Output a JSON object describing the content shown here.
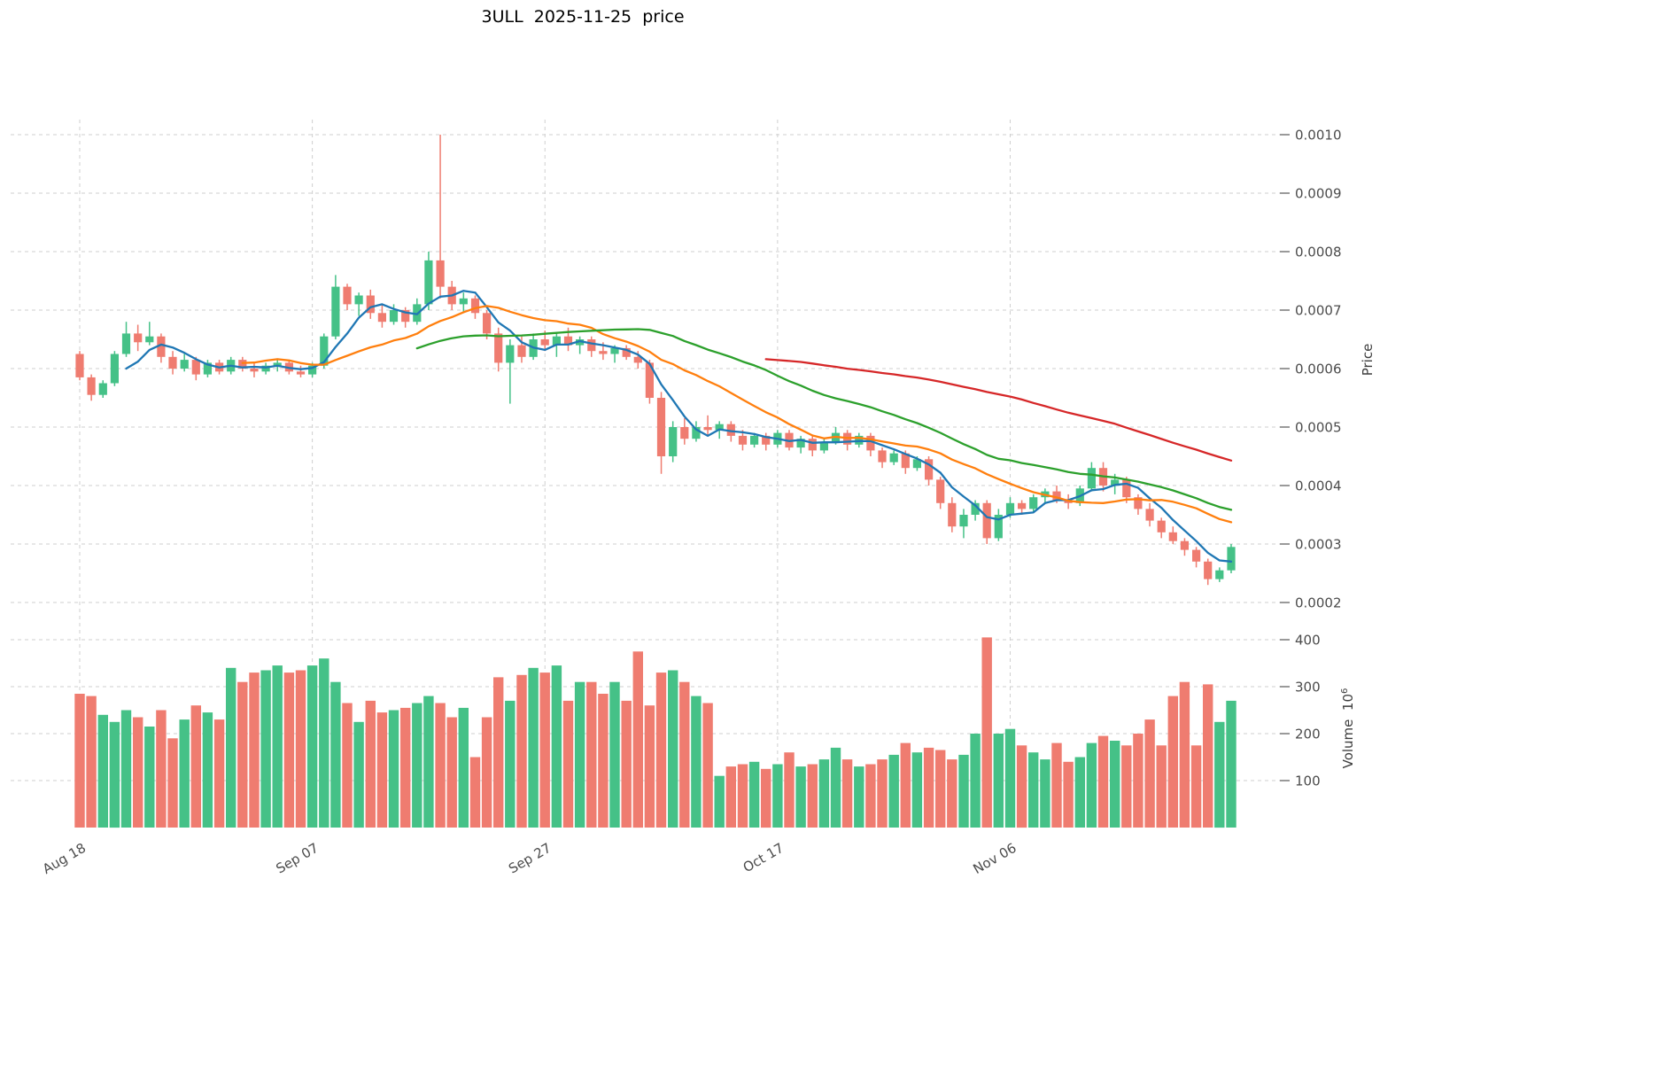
{
  "chart_data": {
    "type": "candlestick",
    "title": "3ULL  2025-11-25  price",
    "background": "#ffffff",
    "grid_color": "#cfcfcf",
    "colors": {
      "up": "#45c187",
      "down": "#ef7c70"
    },
    "price_panel": {
      "ylabel": "Price",
      "yticks": [
        0.0002,
        0.0003,
        0.0004,
        0.0005,
        0.0006,
        0.0007,
        0.0008,
        0.0009,
        0.001
      ],
      "ylim": [
        0.00018,
        0.00103
      ],
      "grid": true
    },
    "volume_panel": {
      "ylabel": "Volume",
      "unit_base": "10",
      "unit_exponent": "6",
      "yticks": [
        100,
        200,
        300,
        400
      ],
      "ylim": [
        0,
        420
      ],
      "grid": true
    },
    "x_axis": {
      "tick_labels": [
        "Aug 18",
        "Sep 07",
        "Sep 27",
        "Oct 17",
        "Nov 06"
      ],
      "tick_indices": [
        0,
        20,
        40,
        60,
        80
      ],
      "n_points": 100
    },
    "moving_averages": [
      {
        "name": "MA5",
        "window": 5,
        "color": "#1f77b4"
      },
      {
        "name": "MA15",
        "window": 15,
        "color": "#ff7f0e"
      },
      {
        "name": "MA30",
        "window": 30,
        "color": "#2ca02c"
      },
      {
        "name": "MA60",
        "window": 60,
        "color": "#d62728"
      }
    ],
    "volume_unit": "millions",
    "ohlcv": [
      [
        0.000625,
        0.00063,
        0.00058,
        0.000585,
        285
      ],
      [
        0.000585,
        0.00059,
        0.000545,
        0.000555,
        280
      ],
      [
        0.000555,
        0.00058,
        0.00055,
        0.000575,
        240
      ],
      [
        0.000575,
        0.00063,
        0.00057,
        0.000625,
        225
      ],
      [
        0.000625,
        0.00068,
        0.00062,
        0.00066,
        250
      ],
      [
        0.00066,
        0.000675,
        0.00063,
        0.000645,
        235
      ],
      [
        0.000645,
        0.00068,
        0.00064,
        0.000655,
        215
      ],
      [
        0.000655,
        0.00066,
        0.00061,
        0.00062,
        250
      ],
      [
        0.00062,
        0.00063,
        0.00059,
        0.0006,
        190
      ],
      [
        0.0006,
        0.000625,
        0.000595,
        0.000615,
        230
      ],
      [
        0.000615,
        0.00062,
        0.00058,
        0.00059,
        260
      ],
      [
        0.00059,
        0.000615,
        0.000585,
        0.00061,
        245
      ],
      [
        0.00061,
        0.000615,
        0.00059,
        0.000595,
        230
      ],
      [
        0.000595,
        0.00062,
        0.00059,
        0.000615,
        340
      ],
      [
        0.000615,
        0.00062,
        0.000595,
        0.0006,
        310
      ],
      [
        0.0006,
        0.00061,
        0.000585,
        0.000595,
        330
      ],
      [
        0.000595,
        0.00061,
        0.00059,
        0.000605,
        335
      ],
      [
        0.000605,
        0.000615,
        0.000595,
        0.00061,
        345
      ],
      [
        0.00061,
        0.000615,
        0.00059,
        0.000595,
        330
      ],
      [
        0.000595,
        0.000605,
        0.000585,
        0.00059,
        335
      ],
      [
        0.00059,
        0.00061,
        0.000585,
        0.000605,
        345
      ],
      [
        0.000605,
        0.00066,
        0.0006,
        0.000655,
        360
      ],
      [
        0.000655,
        0.00076,
        0.00065,
        0.00074,
        310
      ],
      [
        0.00074,
        0.000745,
        0.0007,
        0.00071,
        265
      ],
      [
        0.00071,
        0.00073,
        0.00069,
        0.000725,
        225
      ],
      [
        0.000725,
        0.000735,
        0.000685,
        0.000695,
        270
      ],
      [
        0.000695,
        0.00071,
        0.00067,
        0.00068,
        245
      ],
      [
        0.00068,
        0.00071,
        0.000675,
        0.0007,
        250
      ],
      [
        0.0007,
        0.000705,
        0.00067,
        0.00068,
        255
      ],
      [
        0.00068,
        0.00072,
        0.000675,
        0.00071,
        265
      ],
      [
        0.00071,
        0.0008,
        0.0007,
        0.000785,
        280
      ],
      [
        0.000785,
        0.001,
        0.00072,
        0.00074,
        265
      ],
      [
        0.00074,
        0.00075,
        0.0007,
        0.00071,
        235
      ],
      [
        0.00071,
        0.00073,
        0.000695,
        0.00072,
        255
      ],
      [
        0.00072,
        0.000725,
        0.000685,
        0.000695,
        150
      ],
      [
        0.000695,
        0.0007,
        0.00065,
        0.00066,
        235
      ],
      [
        0.00066,
        0.00067,
        0.000595,
        0.00061,
        320
      ],
      [
        0.00061,
        0.00065,
        0.00054,
        0.00064,
        270
      ],
      [
        0.00064,
        0.000655,
        0.00061,
        0.00062,
        325
      ],
      [
        0.00062,
        0.00066,
        0.000615,
        0.00065,
        340
      ],
      [
        0.00065,
        0.000665,
        0.00063,
        0.00064,
        330
      ],
      [
        0.00064,
        0.00066,
        0.00062,
        0.000655,
        345
      ],
      [
        0.000655,
        0.00067,
        0.00063,
        0.00064,
        270
      ],
      [
        0.00064,
        0.000655,
        0.000625,
        0.00065,
        310
      ],
      [
        0.00065,
        0.000655,
        0.00062,
        0.00063,
        310
      ],
      [
        0.00063,
        0.000645,
        0.000615,
        0.000625,
        285
      ],
      [
        0.000625,
        0.00064,
        0.00061,
        0.000635,
        310
      ],
      [
        0.000635,
        0.00064,
        0.000615,
        0.00062,
        270
      ],
      [
        0.00062,
        0.00063,
        0.0006,
        0.00061,
        375
      ],
      [
        0.00061,
        0.000615,
        0.00054,
        0.00055,
        260
      ],
      [
        0.00055,
        0.00056,
        0.00042,
        0.00045,
        330
      ],
      [
        0.00045,
        0.00051,
        0.00044,
        0.0005,
        335
      ],
      [
        0.0005,
        0.000515,
        0.00047,
        0.00048,
        310
      ],
      [
        0.00048,
        0.00051,
        0.000475,
        0.0005,
        280
      ],
      [
        0.0005,
        0.00052,
        0.000485,
        0.000495,
        265
      ],
      [
        0.000495,
        0.00051,
        0.00048,
        0.000505,
        110
      ],
      [
        0.000505,
        0.00051,
        0.000475,
        0.000485,
        130
      ],
      [
        0.000485,
        0.000495,
        0.00046,
        0.00047,
        135
      ],
      [
        0.00047,
        0.00049,
        0.000465,
        0.000485,
        140
      ],
      [
        0.000485,
        0.00049,
        0.00046,
        0.00047,
        125
      ],
      [
        0.00047,
        0.000495,
        0.000465,
        0.00049,
        135
      ],
      [
        0.00049,
        0.000495,
        0.00046,
        0.000465,
        160
      ],
      [
        0.000465,
        0.000485,
        0.000455,
        0.00048,
        130
      ],
      [
        0.00048,
        0.000485,
        0.00045,
        0.00046,
        135
      ],
      [
        0.00046,
        0.00048,
        0.000455,
        0.000475,
        145
      ],
      [
        0.000475,
        0.0005,
        0.00047,
        0.00049,
        170
      ],
      [
        0.00049,
        0.000495,
        0.00046,
        0.00047,
        145
      ],
      [
        0.00047,
        0.00049,
        0.000465,
        0.000485,
        130
      ],
      [
        0.000485,
        0.00049,
        0.00045,
        0.00046,
        135
      ],
      [
        0.00046,
        0.000465,
        0.00043,
        0.00044,
        145
      ],
      [
        0.00044,
        0.00046,
        0.000435,
        0.000455,
        155
      ],
      [
        0.000455,
        0.00046,
        0.00042,
        0.00043,
        180
      ],
      [
        0.00043,
        0.00045,
        0.000425,
        0.000445,
        160
      ],
      [
        0.000445,
        0.00045,
        0.0004,
        0.00041,
        170
      ],
      [
        0.00041,
        0.000415,
        0.00036,
        0.00037,
        165
      ],
      [
        0.00037,
        0.00038,
        0.00032,
        0.00033,
        145
      ],
      [
        0.00033,
        0.00036,
        0.00031,
        0.00035,
        155
      ],
      [
        0.00035,
        0.000375,
        0.00034,
        0.00037,
        200
      ],
      [
        0.00037,
        0.000375,
        0.0003,
        0.00031,
        405
      ],
      [
        0.00031,
        0.00036,
        0.000305,
        0.00035,
        200
      ],
      [
        0.00035,
        0.00038,
        0.000345,
        0.00037,
        210
      ],
      [
        0.00037,
        0.000375,
        0.00035,
        0.00036,
        175
      ],
      [
        0.00036,
        0.000385,
        0.000355,
        0.00038,
        160
      ],
      [
        0.00038,
        0.000395,
        0.00037,
        0.00039,
        145
      ],
      [
        0.00039,
        0.0004,
        0.00037,
        0.000375,
        180
      ],
      [
        0.000375,
        0.000385,
        0.00036,
        0.00037,
        140
      ],
      [
        0.00037,
        0.0004,
        0.000365,
        0.000395,
        150
      ],
      [
        0.000395,
        0.00044,
        0.00039,
        0.00043,
        180
      ],
      [
        0.00043,
        0.00044,
        0.00039,
        0.0004,
        195
      ],
      [
        0.0004,
        0.00042,
        0.000385,
        0.00041,
        185
      ],
      [
        0.00041,
        0.000415,
        0.00037,
        0.00038,
        175
      ],
      [
        0.00038,
        0.000385,
        0.00035,
        0.00036,
        200
      ],
      [
        0.00036,
        0.00037,
        0.00033,
        0.00034,
        230
      ],
      [
        0.00034,
        0.000345,
        0.00031,
        0.00032,
        175
      ],
      [
        0.00032,
        0.00033,
        0.0003,
        0.000305,
        280
      ],
      [
        0.000305,
        0.00031,
        0.00028,
        0.00029,
        310
      ],
      [
        0.00029,
        0.000295,
        0.00026,
        0.00027,
        175
      ],
      [
        0.00027,
        0.000275,
        0.00023,
        0.00024,
        305
      ],
      [
        0.00024,
        0.00026,
        0.000235,
        0.000255,
        225
      ],
      [
        0.000255,
        0.0003,
        0.00025,
        0.000295,
        270
      ]
    ]
  }
}
